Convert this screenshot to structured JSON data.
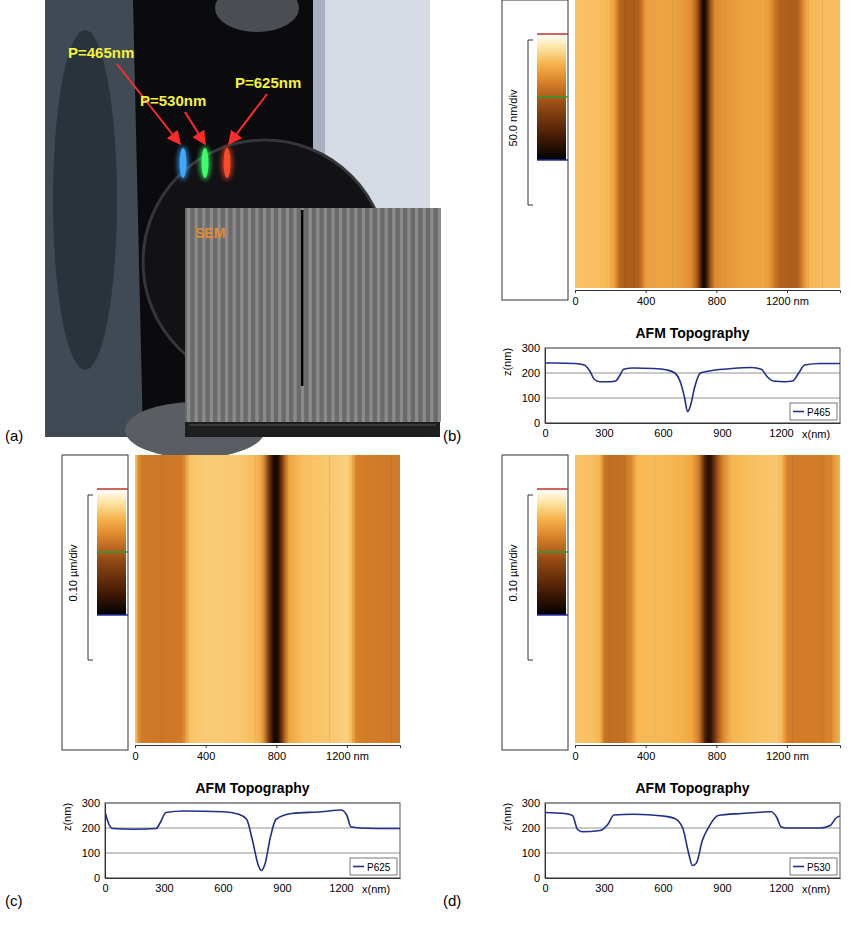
{
  "panel_labels": [
    "(a)",
    "(b)",
    "(c)",
    "(d)"
  ],
  "photo": {
    "gratings": [
      {
        "label": "P=465nm",
        "color": "#3fa8ff"
      },
      {
        "label": "P=530nm",
        "color": "#3dff6a"
      },
      {
        "label": "P=625nm",
        "color": "#ff4a2a"
      }
    ],
    "inset_label": "SEM"
  },
  "chart_data": [
    {
      "type": "line",
      "title": "AFM Topography",
      "x_label": "x(nm)",
      "y_label": "z(nm)",
      "x": [
        0,
        50,
        150,
        200,
        230,
        250,
        280,
        330,
        360,
        380,
        400,
        450,
        550,
        620,
        660,
        690,
        710,
        725,
        740,
        760,
        790,
        850,
        950,
        1050,
        1100,
        1130,
        1160,
        1220,
        1260,
        1290,
        1320,
        1400,
        1500
      ],
      "series": [
        {
          "name": "P465",
          "color": "#1f2f8a",
          "values": [
            240,
            240,
            238,
            232,
            205,
            175,
            165,
            165,
            168,
            190,
            215,
            220,
            218,
            212,
            200,
            160,
            100,
            45,
            70,
            140,
            200,
            210,
            218,
            222,
            215,
            185,
            168,
            165,
            168,
            200,
            232,
            238,
            238
          ]
        }
      ],
      "xlim": [
        0,
        1500
      ],
      "xticks": [
        0,
        300,
        600,
        900,
        1200
      ],
      "ylim": [
        0,
        300
      ],
      "yticks": [
        0,
        100,
        200,
        300
      ],
      "grid": true,
      "legend": "lower right",
      "afm_image": {
        "xlim": [
          0,
          1500
        ],
        "xticks": [
          0,
          400,
          800,
          {
            "value": 1200,
            "label": "1200 nm"
          }
        ],
        "colorbar_label": "50.0 nm/div",
        "color_range": [
          40,
          290
        ]
      }
    },
    {
      "type": "line",
      "title": "AFM Topography",
      "x_label": "x(nm)",
      "y_label": "z(nm)",
      "x": [
        0,
        20,
        40,
        150,
        260,
        280,
        310,
        400,
        600,
        680,
        720,
        750,
        780,
        795,
        815,
        840,
        870,
        950,
        1100,
        1200,
        1230,
        1250,
        1300,
        1450,
        1500
      ],
      "series": [
        {
          "name": "P625",
          "color": "#1f2f8a",
          "values": [
            265,
            215,
            198,
            195,
            198,
            220,
            262,
            268,
            265,
            255,
            235,
            150,
            50,
            30,
            60,
            160,
            235,
            258,
            265,
            272,
            250,
            205,
            200,
            198,
            198
          ]
        }
      ],
      "xlim": [
        0,
        1500
      ],
      "xticks": [
        0,
        300,
        600,
        900,
        1200
      ],
      "ylim": [
        0,
        300
      ],
      "yticks": [
        0,
        100,
        200,
        300
      ],
      "grid": true,
      "legend": "lower right",
      "afm_image": {
        "xlim": [
          0,
          1500
        ],
        "xticks": [
          0,
          400,
          800,
          {
            "value": 1200,
            "label": "1200 nm"
          }
        ],
        "colorbar_label": "0.10 µm/div",
        "color_range": [
          20,
          320
        ]
      }
    },
    {
      "type": "line",
      "title": "AFM Topography",
      "x_label": "x(nm)",
      "y_label": "z(nm)",
      "x": [
        0,
        100,
        140,
        165,
        190,
        280,
        320,
        350,
        450,
        600,
        660,
        700,
        730,
        750,
        770,
        800,
        830,
        880,
        1000,
        1150,
        1180,
        1200,
        1230,
        1400,
        1450,
        1480,
        1500
      ],
      "series": [
        {
          "name": "P530",
          "color": "#1f2f8a",
          "values": [
            262,
            258,
            250,
            195,
            185,
            190,
            215,
            252,
            255,
            248,
            238,
            200,
            100,
            50,
            60,
            150,
            200,
            250,
            258,
            265,
            240,
            205,
            200,
            200,
            210,
            240,
            248
          ]
        }
      ],
      "xlim": [
        0,
        1500
      ],
      "xticks": [
        0,
        300,
        600,
        900,
        1200
      ],
      "ylim": [
        0,
        300
      ],
      "yticks": [
        0,
        100,
        200,
        300
      ],
      "grid": true,
      "legend": "lower right",
      "afm_image": {
        "xlim": [
          0,
          1500
        ],
        "xticks": [
          0,
          400,
          800,
          {
            "value": 1200,
            "label": "1200 nm"
          }
        ],
        "colorbar_label": "0.10 µm/div",
        "color_range": [
          20,
          320
        ]
      }
    }
  ]
}
